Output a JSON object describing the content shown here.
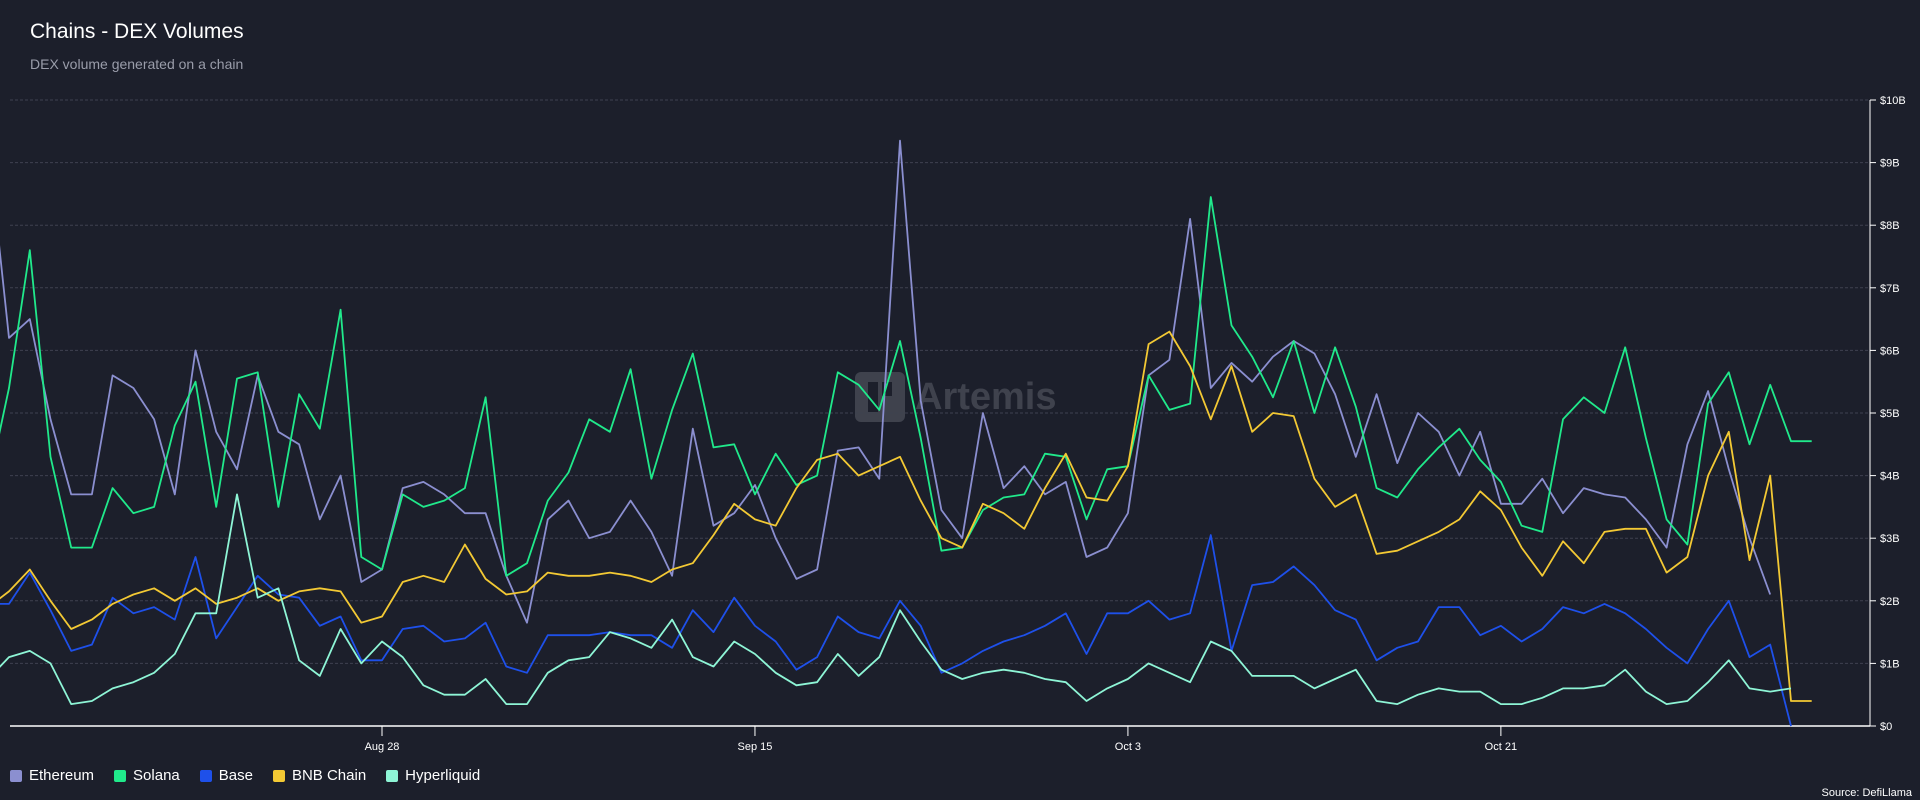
{
  "header": {
    "title": "Chains - DEX Volumes",
    "subtitle": "DEX volume generated on a chain"
  },
  "watermark": {
    "text": "Artemis"
  },
  "source": "Source: DefiLlama",
  "chart_data": {
    "type": "line",
    "title": "Chains - DEX Volumes",
    "subtitle": "DEX volume generated on a chain",
    "xlabel": "",
    "ylabel": "",
    "ylim": [
      0,
      10
    ],
    "y_tick_values": [
      0,
      1,
      2,
      3,
      4,
      5,
      6,
      7,
      8,
      9,
      10
    ],
    "y_tick_labels": [
      "$0",
      "$1B",
      "$2B",
      "$3B",
      "$4B",
      "$5B",
      "$6B",
      "$7B",
      "$8B",
      "$9B",
      "$10B"
    ],
    "x_start_index": -20,
    "x_tick_index": [
      0,
      18,
      36,
      54
    ],
    "x_tick_labels": [
      "Aug 28",
      "Sep 15",
      "Oct 3",
      "Oct 21"
    ],
    "grid": true,
    "legend_position": "bottom-left",
    "series": [
      {
        "name": "Ethereum",
        "color": "#8b8fd0",
        "values": [
          5.2,
          9.3,
          6.2,
          6.5,
          4.9,
          3.7,
          3.7,
          5.6,
          5.4,
          4.9,
          3.7,
          6.0,
          4.7,
          4.1,
          5.6,
          4.7,
          4.5,
          3.3,
          4.0,
          2.3,
          2.5,
          3.8,
          3.9,
          3.7,
          3.4,
          3.4,
          2.4,
          1.65,
          3.3,
          3.6,
          3.0,
          3.1,
          3.6,
          3.1,
          2.4,
          4.75,
          3.2,
          3.4,
          3.85,
          3.0,
          2.35,
          2.5,
          4.4,
          4.45,
          3.95,
          9.35,
          5.2,
          3.45,
          3.0,
          5.0,
          3.8,
          4.15,
          3.7,
          3.9,
          2.7,
          2.85,
          3.4,
          5.6,
          5.85,
          8.1,
          5.4,
          5.8,
          5.5,
          5.9,
          6.15,
          5.95,
          5.3,
          4.3,
          5.3,
          4.2,
          5.0,
          4.7,
          4.0,
          4.7,
          3.55,
          3.55,
          3.95,
          3.4,
          3.8,
          3.7,
          3.65,
          3.3,
          2.85,
          4.5,
          5.35,
          4.1,
          3.0,
          2.1
        ]
      },
      {
        "name": "Solana",
        "color": "#20e98b",
        "values": [
          3.9,
          3.85,
          5.4,
          7.6,
          4.3,
          2.85,
          2.85,
          3.8,
          3.4,
          3.5,
          4.8,
          5.5,
          3.5,
          5.55,
          5.65,
          3.5,
          5.3,
          4.75,
          6.65,
          2.7,
          2.5,
          3.7,
          3.5,
          3.6,
          3.8,
          5.25,
          2.4,
          2.6,
          3.6,
          4.05,
          4.9,
          4.7,
          5.7,
          3.95,
          5.05,
          5.95,
          4.45,
          4.5,
          3.7,
          4.35,
          3.85,
          4.0,
          5.65,
          5.45,
          5.05,
          6.15,
          4.6,
          2.8,
          2.85,
          3.45,
          3.65,
          3.7,
          4.35,
          4.3,
          3.3,
          4.1,
          4.15,
          5.6,
          5.05,
          5.15,
          8.45,
          6.4,
          5.9,
          5.25,
          6.15,
          5.0,
          6.05,
          5.1,
          3.8,
          3.65,
          4.1,
          4.45,
          4.75,
          4.25,
          3.9,
          3.2,
          3.1,
          4.9,
          5.25,
          5.0,
          6.05,
          4.6,
          3.3,
          2.9,
          5.15,
          5.65,
          4.5,
          5.45,
          4.55,
          4.55
        ]
      },
      {
        "name": "Base",
        "color": "#1e50ea",
        "values": [
          2.1,
          1.95,
          1.95,
          2.45,
          1.85,
          1.2,
          1.3,
          2.05,
          1.8,
          1.9,
          1.7,
          2.7,
          1.4,
          1.9,
          2.4,
          2.1,
          2.05,
          1.6,
          1.75,
          1.05,
          1.05,
          1.55,
          1.6,
          1.35,
          1.4,
          1.65,
          0.95,
          0.85,
          1.45,
          1.45,
          1.45,
          1.5,
          1.45,
          1.45,
          1.25,
          1.85,
          1.5,
          2.05,
          1.6,
          1.35,
          0.9,
          1.1,
          1.75,
          1.5,
          1.4,
          2.0,
          1.6,
          0.85,
          1.0,
          1.2,
          1.35,
          1.45,
          1.6,
          1.8,
          1.15,
          1.8,
          1.8,
          2.0,
          1.7,
          1.8,
          3.05,
          1.2,
          2.25,
          2.3,
          2.55,
          2.25,
          1.85,
          1.7,
          1.05,
          1.25,
          1.35,
          1.9,
          1.9,
          1.45,
          1.6,
          1.35,
          1.55,
          1.9,
          1.8,
          1.95,
          1.8,
          1.55,
          1.25,
          1.0,
          1.55,
          2.0,
          1.1,
          1.3,
          0.0
        ]
      },
      {
        "name": "BNB Chain",
        "color": "#f3c934",
        "values": [
          2.0,
          1.9,
          2.15,
          2.5,
          2.0,
          1.55,
          1.7,
          1.95,
          2.1,
          2.2,
          2.0,
          2.2,
          1.95,
          2.05,
          2.2,
          2.0,
          2.15,
          2.2,
          2.15,
          1.65,
          1.75,
          2.3,
          2.4,
          2.3,
          2.9,
          2.35,
          2.1,
          2.15,
          2.45,
          2.4,
          2.4,
          2.45,
          2.4,
          2.3,
          2.5,
          2.6,
          3.05,
          3.55,
          3.3,
          3.2,
          3.8,
          4.25,
          4.35,
          4.0,
          4.15,
          4.3,
          3.6,
          3.0,
          2.85,
          3.55,
          3.4,
          3.15,
          3.8,
          4.35,
          3.65,
          3.6,
          4.15,
          6.1,
          6.3,
          5.75,
          4.9,
          5.75,
          4.7,
          5.0,
          4.95,
          3.95,
          3.5,
          3.7,
          2.75,
          2.8,
          2.95,
          3.1,
          3.3,
          3.75,
          3.45,
          2.85,
          2.4,
          2.95,
          2.6,
          3.1,
          3.15,
          3.15,
          2.45,
          2.7,
          4.0,
          4.7,
          2.65,
          4.0,
          0.4,
          0.4
        ]
      },
      {
        "name": "Hyperliquid",
        "color": "#8ef5d6",
        "values": [
          0.7,
          0.75,
          1.1,
          1.2,
          1.0,
          0.35,
          0.4,
          0.6,
          0.7,
          0.85,
          1.15,
          1.8,
          1.8,
          3.7,
          2.05,
          2.2,
          1.05,
          0.8,
          1.55,
          1.0,
          1.35,
          1.1,
          0.65,
          0.5,
          0.5,
          0.75,
          0.35,
          0.35,
          0.85,
          1.05,
          1.1,
          1.5,
          1.4,
          1.25,
          1.7,
          1.1,
          0.95,
          1.35,
          1.15,
          0.85,
          0.65,
          0.7,
          1.15,
          0.8,
          1.1,
          1.85,
          1.35,
          0.9,
          0.75,
          0.85,
          0.9,
          0.85,
          0.75,
          0.7,
          0.4,
          0.6,
          0.75,
          1.0,
          0.85,
          0.7,
          1.35,
          1.2,
          0.8,
          0.8,
          0.8,
          0.6,
          0.75,
          0.9,
          0.4,
          0.35,
          0.5,
          0.6,
          0.55,
          0.55,
          0.35,
          0.35,
          0.45,
          0.6,
          0.6,
          0.65,
          0.9,
          0.55,
          0.35,
          0.4,
          0.7,
          1.05,
          0.6,
          0.55,
          0.6
        ]
      }
    ]
  }
}
